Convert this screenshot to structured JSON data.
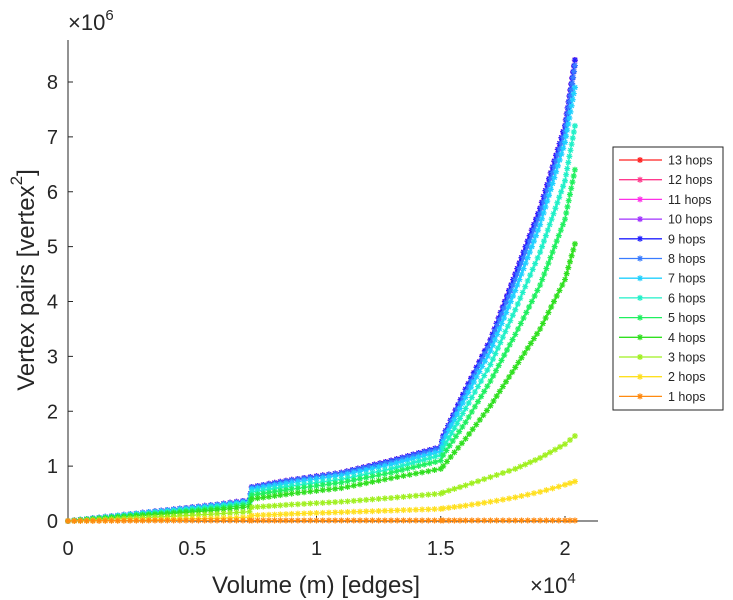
{
  "chart_data": {
    "type": "line",
    "title": "",
    "xlabel": "Volume (m) [edges]",
    "ylabel": "Vertex pairs [vertex",
    "ylabel_superscript": "2",
    "ylabel_suffix": "]",
    "x_multiplier": "×10",
    "x_multiplier_exp": "4",
    "y_multiplier": "×10",
    "y_multiplier_exp": "6",
    "xlim": [
      0,
      2.12
    ],
    "ylim": [
      0,
      8.7
    ],
    "xticks": [
      0,
      0.5,
      1,
      1.5,
      2
    ],
    "xtick_labels": [
      "0",
      "0.5",
      "1",
      "1.5",
      "2"
    ],
    "yticks": [
      0,
      1,
      2,
      3,
      4,
      5,
      6,
      7,
      8
    ],
    "ytick_labels": [
      "0",
      "1",
      "2",
      "3",
      "4",
      "5",
      "6",
      "7",
      "8"
    ],
    "legend_position": "right",
    "x": [
      0,
      0.2,
      0.4,
      0.6,
      0.73,
      0.74,
      0.9,
      1.1,
      1.3,
      1.5,
      1.51,
      1.6,
      1.7,
      1.8,
      1.9,
      2.0,
      2.04
    ],
    "series": [
      {
        "name": "13 hops",
        "color": "#ff2020",
        "values": [
          0,
          0.1,
          0.2,
          0.3,
          0.38,
          0.62,
          0.75,
          0.88,
          1.1,
          1.35,
          1.55,
          2.4,
          3.3,
          4.5,
          5.7,
          7.2,
          8.4
        ]
      },
      {
        "name": "12 hops",
        "color": "#ff3a8c",
        "values": [
          0,
          0.1,
          0.2,
          0.3,
          0.38,
          0.62,
          0.75,
          0.88,
          1.1,
          1.35,
          1.55,
          2.4,
          3.3,
          4.5,
          5.7,
          7.2,
          8.4
        ]
      },
      {
        "name": "11 hops",
        "color": "#ff30e8",
        "values": [
          0,
          0.1,
          0.2,
          0.3,
          0.38,
          0.62,
          0.75,
          0.88,
          1.1,
          1.35,
          1.55,
          2.4,
          3.3,
          4.5,
          5.7,
          7.2,
          8.4
        ]
      },
      {
        "name": "10 hops",
        "color": "#a030ff",
        "values": [
          0,
          0.1,
          0.2,
          0.3,
          0.38,
          0.62,
          0.75,
          0.88,
          1.1,
          1.35,
          1.55,
          2.4,
          3.3,
          4.5,
          5.7,
          7.2,
          8.4
        ]
      },
      {
        "name": "9 hops",
        "color": "#2020ff",
        "values": [
          0,
          0.1,
          0.2,
          0.3,
          0.38,
          0.62,
          0.75,
          0.88,
          1.1,
          1.35,
          1.55,
          2.4,
          3.3,
          4.5,
          5.7,
          7.2,
          8.4
        ]
      },
      {
        "name": "8 hops",
        "color": "#3a7cff",
        "values": [
          0,
          0.1,
          0.2,
          0.3,
          0.37,
          0.61,
          0.74,
          0.87,
          1.08,
          1.33,
          1.52,
          2.35,
          3.25,
          4.4,
          5.6,
          7.1,
          8.3
        ]
      },
      {
        "name": "7 hops",
        "color": "#20d0ff",
        "values": [
          0,
          0.1,
          0.19,
          0.28,
          0.36,
          0.58,
          0.7,
          0.83,
          1.03,
          1.27,
          1.45,
          2.25,
          3.1,
          4.2,
          5.4,
          6.9,
          7.9
        ]
      },
      {
        "name": "6 hops",
        "color": "#20f0c8",
        "values": [
          0,
          0.09,
          0.17,
          0.26,
          0.33,
          0.53,
          0.64,
          0.76,
          0.95,
          1.2,
          1.33,
          2.05,
          2.85,
          3.85,
          4.9,
          6.2,
          7.2
        ]
      },
      {
        "name": "5 hops",
        "color": "#20f060",
        "values": [
          0,
          0.08,
          0.15,
          0.23,
          0.3,
          0.47,
          0.58,
          0.7,
          0.88,
          1.1,
          1.2,
          1.8,
          2.55,
          3.4,
          4.3,
          5.5,
          6.4
        ]
      },
      {
        "name": "4 hops",
        "color": "#30e020",
        "values": [
          0,
          0.07,
          0.13,
          0.2,
          0.26,
          0.4,
          0.5,
          0.6,
          0.78,
          0.95,
          1.0,
          1.5,
          2.1,
          2.8,
          3.5,
          4.4,
          5.05
        ]
      },
      {
        "name": "3 hops",
        "color": "#a0f020",
        "values": [
          0,
          0.04,
          0.08,
          0.13,
          0.17,
          0.25,
          0.3,
          0.35,
          0.42,
          0.5,
          0.52,
          0.65,
          0.8,
          0.95,
          1.15,
          1.4,
          1.55
        ]
      },
      {
        "name": "2 hops",
        "color": "#ffe020",
        "values": [
          0,
          0.01,
          0.03,
          0.05,
          0.07,
          0.1,
          0.13,
          0.16,
          0.19,
          0.22,
          0.23,
          0.28,
          0.35,
          0.43,
          0.53,
          0.66,
          0.72
        ]
      },
      {
        "name": "1 hops",
        "color": "#ff8a10",
        "values": [
          0,
          0.005,
          0.01,
          0.01,
          0.01,
          0.01,
          0.01,
          0.01,
          0.01,
          0.01,
          0.01,
          0.01,
          0.01,
          0.01,
          0.01,
          0.01,
          0.01
        ]
      }
    ]
  }
}
